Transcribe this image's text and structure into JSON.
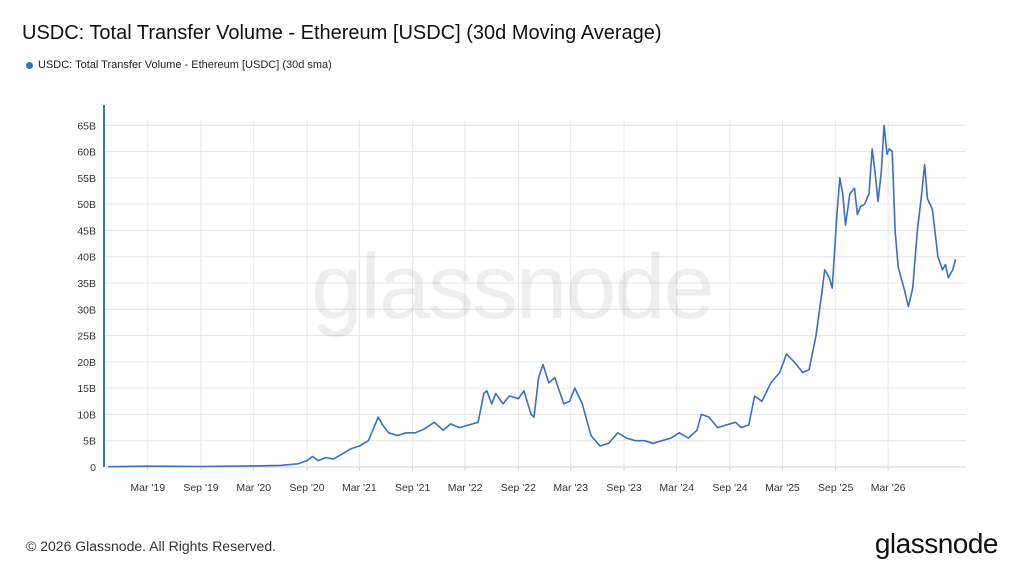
{
  "header": {
    "title": "USDC: Total Transfer Volume - Ethereum [USDC] (30d Moving Average)",
    "legend_label": "USDC: Total Transfer Volume - Ethereum [USDC] (30d sma)"
  },
  "watermark": "glassnode",
  "footer": {
    "copyright": "© 2026 Glassnode. All Rights Reserved.",
    "brand": "glassnode"
  },
  "colors": {
    "series": "#3a6fc4",
    "grid": "#e6e6e6",
    "axis": "#3a6fc4"
  },
  "chart_data": {
    "type": "line",
    "title": "USDC: Total Transfer Volume - Ethereum [USDC] (30d Moving Average)",
    "xlabel": "",
    "ylabel": "",
    "ylim": [
      0,
      66
    ],
    "y_ticks": [
      0,
      5,
      10,
      15,
      20,
      25,
      30,
      35,
      40,
      45,
      50,
      55,
      60,
      65
    ],
    "y_tick_labels": [
      "0",
      "5B",
      "10B",
      "15B",
      "20B",
      "25B",
      "30B",
      "35B",
      "40B",
      "45B",
      "50B",
      "55B",
      "60B",
      "65B"
    ],
    "x_range": [
      "2018-10-01",
      "2026-11-25"
    ],
    "x_ticks": [
      "2019-03-01",
      "2019-09-01",
      "2020-03-01",
      "2020-09-01",
      "2021-03-01",
      "2021-09-01",
      "2022-03-01",
      "2022-09-01",
      "2023-03-01",
      "2023-09-01",
      "2024-03-01",
      "2024-09-01",
      "2025-03-01",
      "2025-09-01",
      "2026-03-01"
    ],
    "x_tick_labels": [
      "Mar '19",
      "Sep '19",
      "Mar '20",
      "Sep '20",
      "Mar '21",
      "Sep '21",
      "Mar '22",
      "Sep '22",
      "Mar '23",
      "Sep '23",
      "Mar '24",
      "Sep '24",
      "Mar '25",
      "Sep '25",
      "Mar '26"
    ],
    "grid": true,
    "legend": "top-left",
    "series": [
      {
        "name": "USDC: Total Transfer Volume - Ethereum [USDC] (30d sma)",
        "points": [
          [
            "2018-10-15",
            0.05
          ],
          [
            "2019-03-01",
            0.15
          ],
          [
            "2019-09-01",
            0.1
          ],
          [
            "2020-03-01",
            0.2
          ],
          [
            "2020-06-01",
            0.3
          ],
          [
            "2020-08-01",
            0.6
          ],
          [
            "2020-09-01",
            1.2
          ],
          [
            "2020-09-20",
            2.0
          ],
          [
            "2020-10-10",
            1.2
          ],
          [
            "2020-11-05",
            1.8
          ],
          [
            "2020-12-01",
            1.5
          ],
          [
            "2021-01-01",
            2.5
          ],
          [
            "2021-02-01",
            3.5
          ],
          [
            "2021-03-01",
            4.0
          ],
          [
            "2021-04-01",
            5.0
          ],
          [
            "2021-04-20",
            7.5
          ],
          [
            "2021-05-05",
            9.5
          ],
          [
            "2021-05-20",
            8.0
          ],
          [
            "2021-06-10",
            6.5
          ],
          [
            "2021-07-10",
            6.0
          ],
          [
            "2021-08-10",
            6.5
          ],
          [
            "2021-09-10",
            6.5
          ],
          [
            "2021-10-10",
            7.2
          ],
          [
            "2021-11-15",
            8.5
          ],
          [
            "2021-12-15",
            7.0
          ],
          [
            "2022-01-10",
            8.2
          ],
          [
            "2022-02-10",
            7.5
          ],
          [
            "2022-03-15",
            8.0
          ],
          [
            "2022-04-15",
            8.5
          ],
          [
            "2022-05-05",
            14.0
          ],
          [
            "2022-05-15",
            14.5
          ],
          [
            "2022-06-01",
            12.0
          ],
          [
            "2022-06-15",
            14.0
          ],
          [
            "2022-07-10",
            12.0
          ],
          [
            "2022-08-01",
            13.5
          ],
          [
            "2022-09-01",
            13.0
          ],
          [
            "2022-09-20",
            14.5
          ],
          [
            "2022-10-15",
            10.0
          ],
          [
            "2022-10-25",
            9.5
          ],
          [
            "2022-11-10",
            17.0
          ],
          [
            "2022-11-25",
            19.5
          ],
          [
            "2022-12-15",
            16.0
          ],
          [
            "2023-01-05",
            17.0
          ],
          [
            "2023-02-05",
            12.0
          ],
          [
            "2023-02-25",
            12.5
          ],
          [
            "2023-03-15",
            15.0
          ],
          [
            "2023-04-10",
            12.0
          ],
          [
            "2023-05-10",
            6.0
          ],
          [
            "2023-06-10",
            4.0
          ],
          [
            "2023-07-10",
            4.5
          ],
          [
            "2023-08-10",
            6.5
          ],
          [
            "2023-09-10",
            5.5
          ],
          [
            "2023-10-10",
            5.0
          ],
          [
            "2023-11-10",
            5.0
          ],
          [
            "2023-12-10",
            4.5
          ],
          [
            "2024-01-10",
            5.0
          ],
          [
            "2024-02-10",
            5.5
          ],
          [
            "2024-03-10",
            6.5
          ],
          [
            "2024-04-10",
            5.5
          ],
          [
            "2024-05-10",
            7.0
          ],
          [
            "2024-05-25",
            10.0
          ],
          [
            "2024-06-20",
            9.5
          ],
          [
            "2024-07-20",
            7.5
          ],
          [
            "2024-08-20",
            8.0
          ],
          [
            "2024-09-20",
            8.5
          ],
          [
            "2024-10-10",
            7.5
          ],
          [
            "2024-11-05",
            8.0
          ],
          [
            "2024-11-25",
            13.5
          ],
          [
            "2024-12-20",
            12.5
          ],
          [
            "2025-01-20",
            16.0
          ],
          [
            "2025-02-20",
            18.0
          ],
          [
            "2025-03-15",
            21.5
          ],
          [
            "2025-04-10",
            20.0
          ],
          [
            "2025-05-10",
            18.0
          ],
          [
            "2025-06-01",
            18.5
          ],
          [
            "2025-06-25",
            25.0
          ],
          [
            "2025-07-15",
            33.0
          ],
          [
            "2025-07-25",
            37.5
          ],
          [
            "2025-08-10",
            36.0
          ],
          [
            "2025-08-20",
            34.0
          ],
          [
            "2025-09-05",
            48.0
          ],
          [
            "2025-09-15",
            55.0
          ],
          [
            "2025-09-25",
            52.0
          ],
          [
            "2025-10-05",
            46.0
          ],
          [
            "2025-10-20",
            52.0
          ],
          [
            "2025-11-05",
            53.0
          ],
          [
            "2025-11-15",
            48.0
          ],
          [
            "2025-11-25",
            49.5
          ],
          [
            "2025-12-10",
            50.0
          ],
          [
            "2025-12-25",
            52.0
          ],
          [
            "2026-01-05",
            60.5
          ],
          [
            "2026-01-15",
            56.0
          ],
          [
            "2026-01-25",
            50.5
          ],
          [
            "2026-02-05",
            56.0
          ],
          [
            "2026-02-15",
            65.0
          ],
          [
            "2026-02-25",
            59.5
          ],
          [
            "2026-03-05",
            60.5
          ],
          [
            "2026-03-15",
            60.0
          ],
          [
            "2026-03-25",
            45.0
          ],
          [
            "2026-04-05",
            38.0
          ],
          [
            "2026-04-25",
            34.0
          ],
          [
            "2026-05-10",
            30.5
          ],
          [
            "2026-05-25",
            34.0
          ],
          [
            "2026-06-10",
            45.0
          ],
          [
            "2026-06-25",
            52.0
          ],
          [
            "2026-07-05",
            57.5
          ],
          [
            "2026-07-15",
            51.0
          ],
          [
            "2026-08-01",
            49.0
          ],
          [
            "2026-08-20",
            40.0
          ],
          [
            "2026-09-05",
            37.5
          ],
          [
            "2026-09-15",
            38.5
          ],
          [
            "2026-09-25",
            36.0
          ],
          [
            "2026-10-10",
            37.5
          ],
          [
            "2026-10-20",
            39.5
          ]
        ]
      }
    ]
  }
}
